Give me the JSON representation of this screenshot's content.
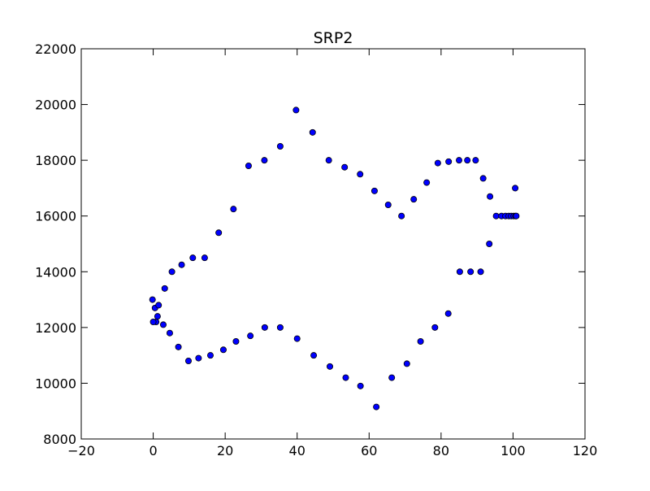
{
  "chart_data": {
    "type": "scatter",
    "title": "SRP2",
    "xlabel": "",
    "ylabel": "",
    "xlim": [
      -20,
      120
    ],
    "ylim": [
      8000,
      22000
    ],
    "xticks": [
      -20,
      0,
      20,
      40,
      60,
      80,
      100,
      120
    ],
    "yticks": [
      8000,
      10000,
      12000,
      14000,
      16000,
      18000,
      20000,
      22000
    ],
    "xtick_labels": [
      "−20",
      "0",
      "20",
      "40",
      "60",
      "80",
      "100",
      "120"
    ],
    "ytick_labels": [
      "8000",
      "10000",
      "12000",
      "14000",
      "16000",
      "18000",
      "20000",
      "22000"
    ],
    "grid": false,
    "marker_color": "#0000ff",
    "marker_edge": "#000000",
    "points": [
      [
        -0.2,
        13000
      ],
      [
        0.5,
        12700
      ],
      [
        1.5,
        12800
      ],
      [
        1.2,
        12400
      ],
      [
        0.8,
        12200
      ],
      [
        0,
        12200
      ],
      [
        2.8,
        12100
      ],
      [
        4.6,
        11800
      ],
      [
        7,
        11300
      ],
      [
        9.8,
        10800
      ],
      [
        12.6,
        10900
      ],
      [
        15.9,
        11000
      ],
      [
        19.5,
        11200
      ],
      [
        23,
        11500
      ],
      [
        27,
        11700
      ],
      [
        31,
        12000
      ],
      [
        35.3,
        12000
      ],
      [
        40,
        11600
      ],
      [
        44.6,
        11000
      ],
      [
        49.1,
        10600
      ],
      [
        53.5,
        10200
      ],
      [
        57.6,
        9900
      ],
      [
        62,
        9150
      ],
      [
        66.3,
        10200
      ],
      [
        70.5,
        10700
      ],
      [
        74.3,
        11500
      ],
      [
        78.3,
        12000
      ],
      [
        82,
        12500
      ],
      [
        85.2,
        14000
      ],
      [
        88.2,
        14000
      ],
      [
        91,
        14000
      ],
      [
        93.4,
        15000
      ],
      [
        93.6,
        16700
      ],
      [
        91.7,
        17350
      ],
      [
        89.6,
        18000
      ],
      [
        87.3,
        18000
      ],
      [
        85,
        18000
      ],
      [
        82.1,
        17950
      ],
      [
        79.1,
        17900
      ],
      [
        76,
        17200
      ],
      [
        72.4,
        16600
      ],
      [
        69,
        16000
      ],
      [
        65.3,
        16400
      ],
      [
        61.5,
        16900
      ],
      [
        57.5,
        17500
      ],
      [
        53.2,
        17750
      ],
      [
        48.8,
        18000
      ],
      [
        44.3,
        19000
      ],
      [
        39.7,
        19800
      ],
      [
        35.3,
        18500
      ],
      [
        30.9,
        18000
      ],
      [
        26.5,
        17800
      ],
      [
        22.3,
        16250
      ],
      [
        18.2,
        15400
      ],
      [
        14.3,
        14500
      ],
      [
        11,
        14500
      ],
      [
        7.9,
        14250
      ],
      [
        5.2,
        14000
      ],
      [
        3.2,
        13400
      ],
      [
        95.3,
        16000
      ],
      [
        96.8,
        16000
      ],
      [
        97.9,
        16000
      ],
      [
        98.8,
        16000
      ],
      [
        99.5,
        16000
      ],
      [
        100.2,
        16000
      ],
      [
        100.7,
        16000
      ],
      [
        100.9,
        16000
      ],
      [
        100.6,
        17000
      ]
    ]
  }
}
